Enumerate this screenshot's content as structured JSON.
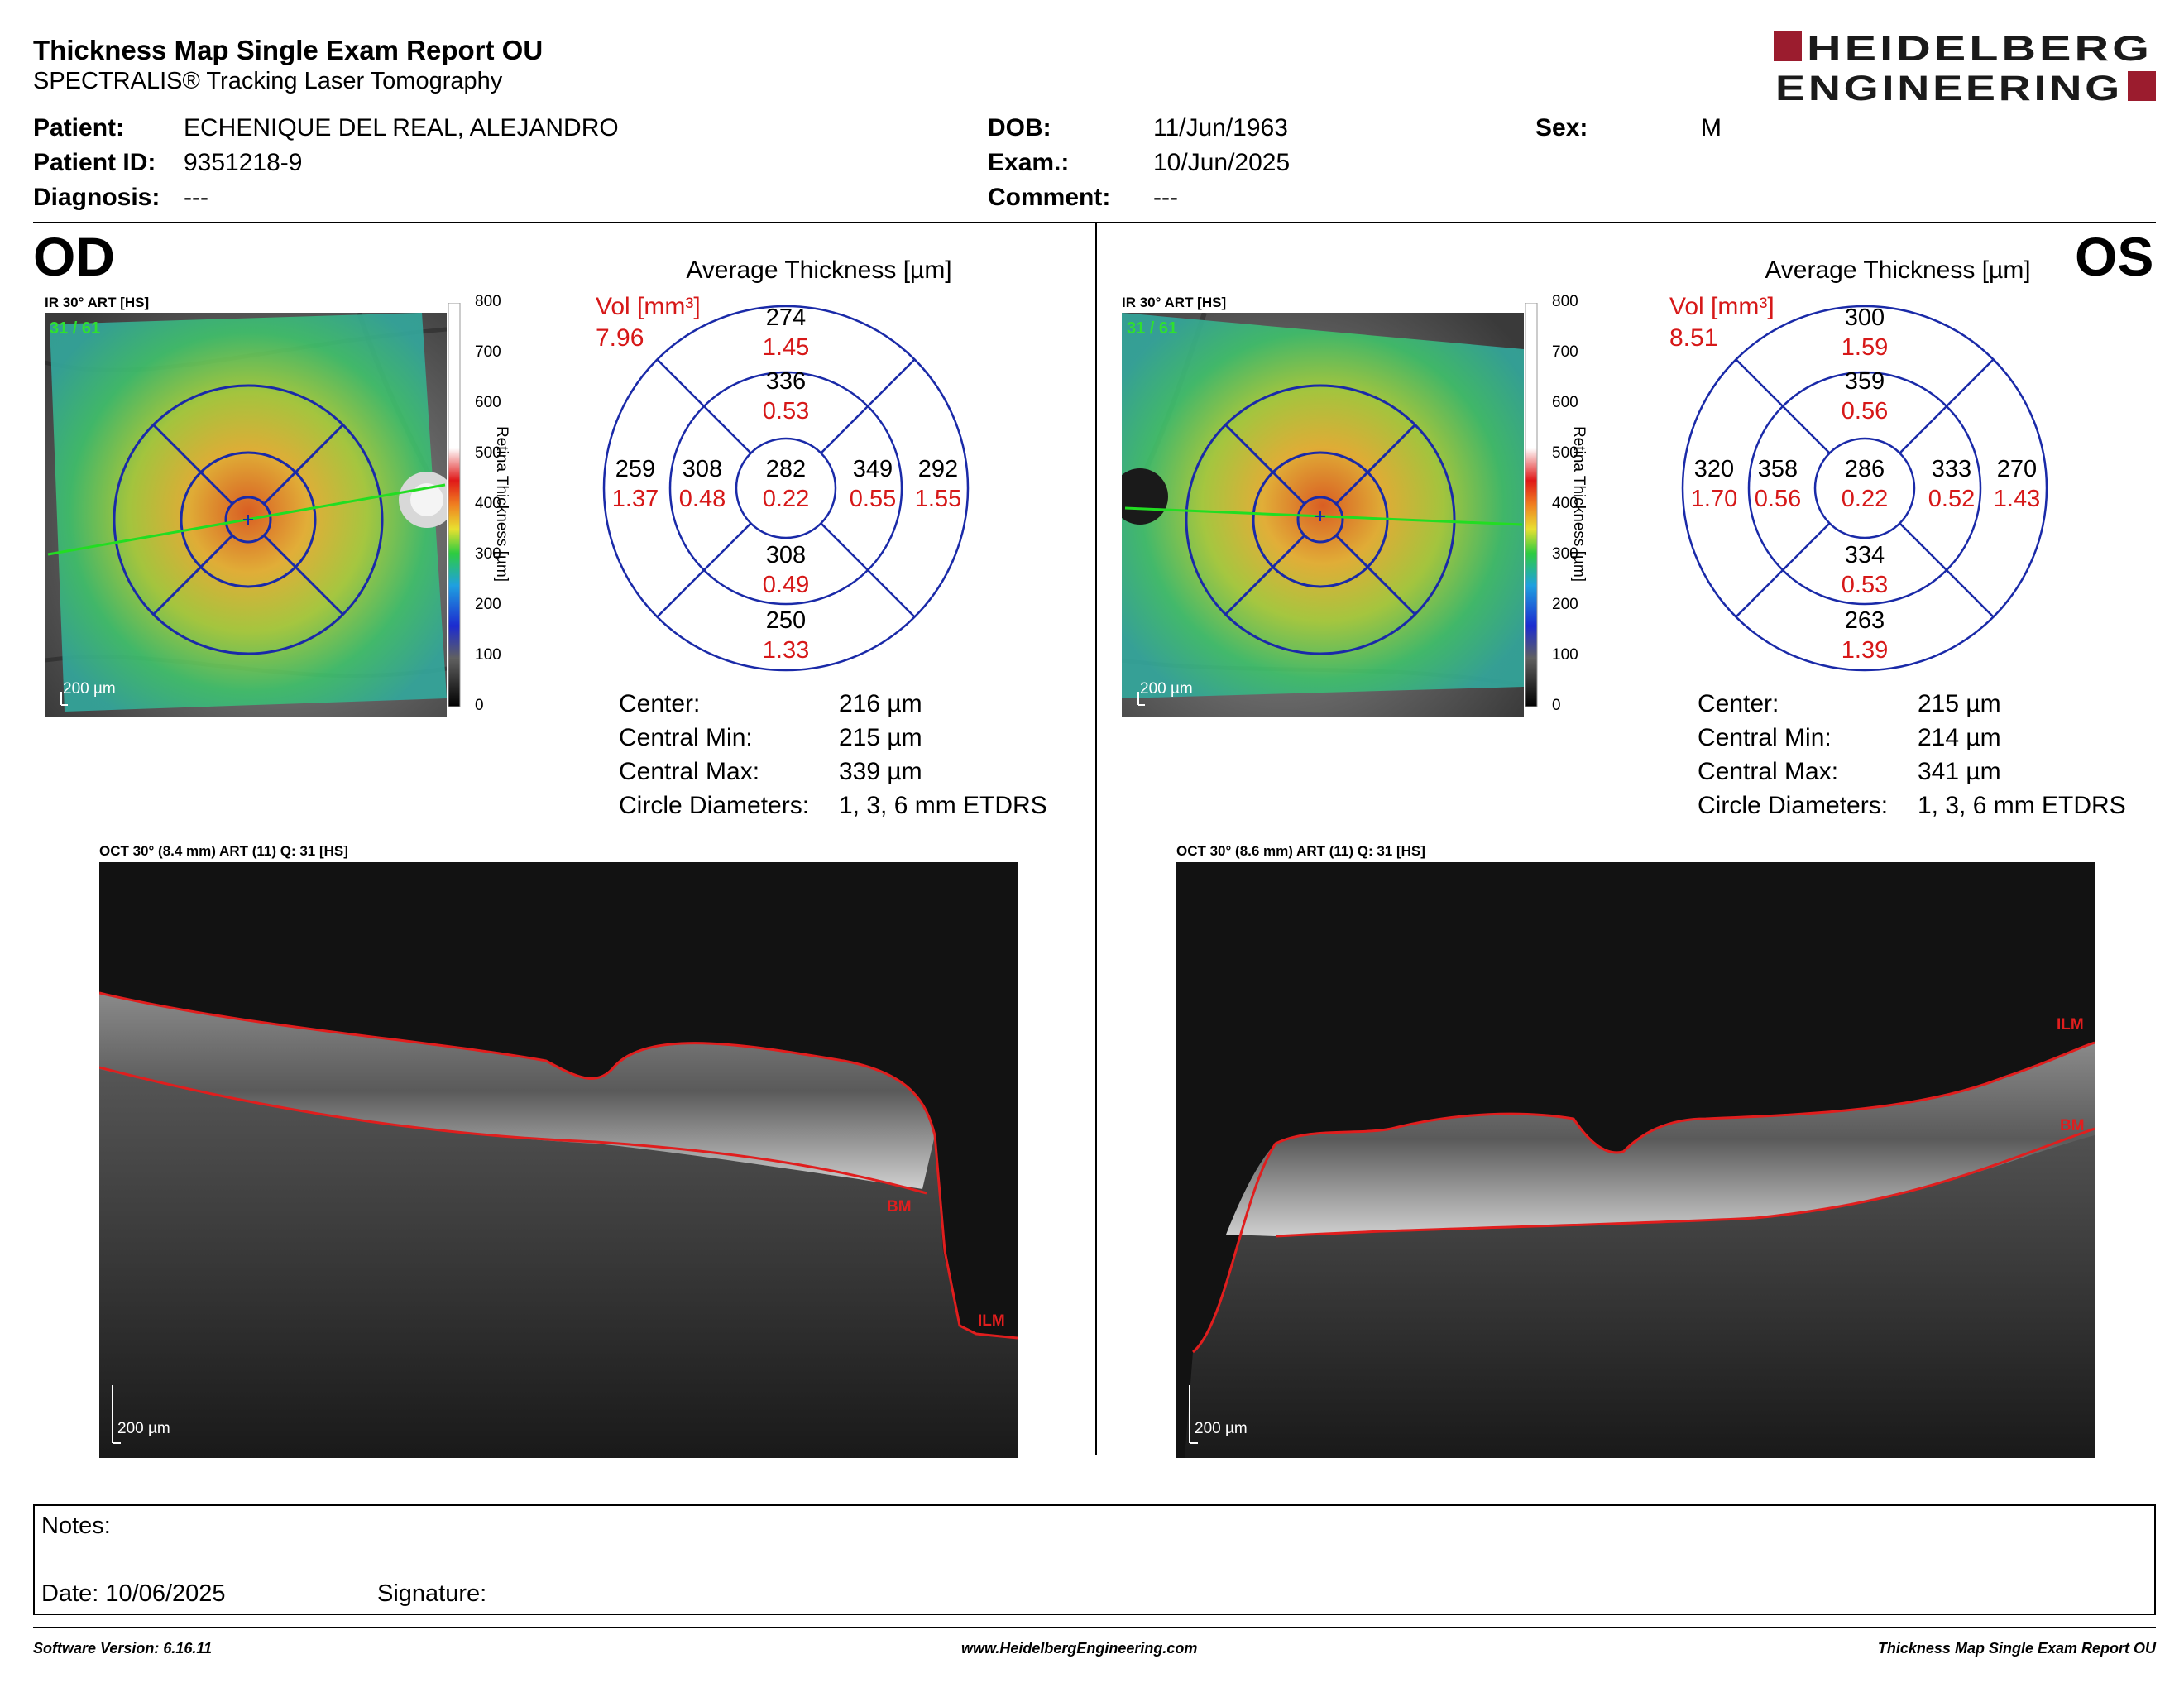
{
  "header": {
    "title": "Thickness Map Single Exam Report OU",
    "subtitle": "SPECTRALIS® Tracking Laser Tomography",
    "logo_line1": "HEIDELBERG",
    "logo_line2": "ENGINEERING",
    "logo_color": "#9b1c2e"
  },
  "patient": {
    "patient_label": "Patient:",
    "patient_value": "ECHENIQUE DEL REAL, ALEJANDRO",
    "id_label": "Patient ID:",
    "id_value": "9351218-9",
    "diagnosis_label": "Diagnosis:",
    "diagnosis_value": "---",
    "dob_label": "DOB:",
    "dob_value": "11/Jun/1963",
    "exam_label": "Exam.:",
    "exam_value": "10/Jun/2025",
    "comment_label": "Comment:",
    "comment_value": "---",
    "sex_label": "Sex:",
    "sex_value": "M"
  },
  "scale": {
    "ticks": [
      "800",
      "700",
      "600",
      "500",
      "400",
      "300",
      "200",
      "100",
      "0"
    ],
    "axis_label": "Retina Thickness [µm]"
  },
  "grid_title": "Average Thickness [µm]",
  "vol_label": "Vol [mm³]",
  "stat_labels": {
    "center": "Center:",
    "central_min": "Central Min:",
    "central_max": "Central Max:",
    "circle": "Circle Diameters:"
  },
  "od": {
    "eye_label": "OD",
    "ir_label": "IR 30° ART [HS]",
    "ir_counter": "31 / 61",
    "ir_scale": "200 µm",
    "vol_total": "7.96",
    "sectors": {
      "outer_top": {
        "t": "274",
        "v": "1.45"
      },
      "inner_top": {
        "t": "336",
        "v": "0.53"
      },
      "outer_left": {
        "t": "259",
        "v": "1.37"
      },
      "inner_left": {
        "t": "308",
        "v": "0.48"
      },
      "center": {
        "t": "282",
        "v": "0.22"
      },
      "inner_right": {
        "t": "349",
        "v": "0.55"
      },
      "outer_right": {
        "t": "292",
        "v": "1.55"
      },
      "inner_bottom": {
        "t": "308",
        "v": "0.49"
      },
      "outer_bottom": {
        "t": "250",
        "v": "1.33"
      }
    },
    "center_val": "216 µm",
    "central_min_val": "215 µm",
    "central_max_val": "339 µm",
    "circle_val": "1, 3, 6 mm ETDRS",
    "oct_label": "OCT 30° (8.4 mm) ART (11) Q: 31 [HS]",
    "oct_scale": "200 µm",
    "bm_tag": "BM",
    "ilm_tag": "ILM"
  },
  "os": {
    "eye_label": "OS",
    "ir_label": "IR 30° ART [HS]",
    "ir_counter": "31 / 61",
    "ir_scale": "200 µm",
    "vol_total": "8.51",
    "sectors": {
      "outer_top": {
        "t": "300",
        "v": "1.59"
      },
      "inner_top": {
        "t": "359",
        "v": "0.56"
      },
      "outer_left": {
        "t": "320",
        "v": "1.70"
      },
      "inner_left": {
        "t": "358",
        "v": "0.56"
      },
      "center": {
        "t": "286",
        "v": "0.22"
      },
      "inner_right": {
        "t": "333",
        "v": "0.52"
      },
      "outer_right": {
        "t": "270",
        "v": "1.43"
      },
      "inner_bottom": {
        "t": "334",
        "v": "0.53"
      },
      "outer_bottom": {
        "t": "263",
        "v": "1.39"
      }
    },
    "center_val": "215 µm",
    "central_min_val": "214 µm",
    "central_max_val": "341 µm",
    "circle_val": "1, 3, 6 mm ETDRS",
    "oct_label": "OCT 30° (8.6 mm) ART (11) Q: 31 [HS]",
    "oct_scale": "200 µm",
    "bm_tag": "BM",
    "ilm_tag": "ILM"
  },
  "notes": {
    "notes_label": "Notes:",
    "date_label": "Date: 10/06/2025",
    "signature_label": "Signature:"
  },
  "footer": {
    "software": "Software Version: 6.16.11",
    "website": "www.HeidelbergEngineering.com",
    "report": "Thickness Map Single Exam Report OU"
  }
}
